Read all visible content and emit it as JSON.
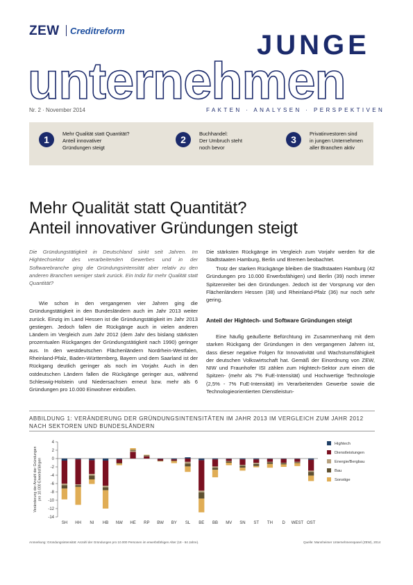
{
  "header": {
    "logo_zew": "ZEW",
    "logo_creditreform": "Creditreform",
    "title_line1": "JUNGE",
    "title_line2": "unternehmen",
    "issue": "Nr. 2 · November 2014",
    "tagline": "FAKTEN · ANALYSEN · PERSPEKTIVEN"
  },
  "teasers": [
    {
      "num": "1",
      "lines": [
        "Mehr Qualität statt Quantität?",
        "Anteil innovativer",
        "Gründungen steigt"
      ]
    },
    {
      "num": "2",
      "lines": [
        "Buchhandel:",
        "Der Umbruch steht",
        "noch bevor"
      ]
    },
    {
      "num": "3",
      "lines": [
        "Privatinvestoren sind",
        "in jungen Unternehmen",
        "aller Branchen aktiv"
      ]
    }
  ],
  "article": {
    "headline_line1": "Mehr Qualität statt Quantität?",
    "headline_line2": "Anteil innovativer Gründungen steigt",
    "lead": "Die Gründungstätigkeit in Deutschland sinkt seit Jahren. Im Hightechsektor des verarbeitenden Gewerbes und in der Softwarebranche ging die Gründungsintensität aber relativ zu den anderen Branchen weniger stark zurück. Ein Indiz für mehr Qualität statt Quantität?",
    "p1": "Wie schon in den vergangenen vier Jahren ging die Gründungstätigkeit in den Bundesländern auch im Jahr 2013 weiter zurück. Einzig im Land Hessen ist die Gründungstätigkeit im Jahr 2013 gestiegen. Jedoch fallen die Rückgänge auch in vielen anderen Ländern im Vergleich zum Jahr 2012 (dem Jahr des bislang stärksten prozentualen Rückganges der Gründungstätigkeit nach 1990) geringer aus. In den westdeutschen Flächenländern Nordrhein-Westfalen, Rheinland-Pfalz, Baden-Württemberg, Bayern und dem Saarland ist der Rückgang deutlich geringer als noch im Vorjahr. Auch in den ostdeutschen Ländern fallen die Rückgänge geringer aus, während Schleswig-Holstein und Niedersachsen erneut bzw. mehr als 6 Gründungen pro 10.000 Einwohner einbüßen.",
    "p2": "Die stärksten Rückgänge im Vergleich zum Vorjahr werden für die Stadtstaaten Hamburg, Berlin und Bremen beobachtet.",
    "p3": "Trotz der starken Rückgänge bleiben die Stadtstaaten Hamburg (42 Gründungen pro 10.000 Erwerbsfähigen) und Berlin (39) noch immer Spitzenreiter bei den Gründungen. Jedoch ist der Vorsprung vor den Flächenländern Hessen (38) und Rheinland-Pfalz (36) nur noch sehr gering.",
    "subhead": "Anteil der Hightech- und Software Gründungen steigt",
    "p4": "Eine häufig geäußerte Befürchtung im Zusammenhang mit dem starken Rückgang der Gründungen in den vergangenen Jahren ist, dass dieser negative Folgen für Innovativität und Wachstumsfähigkeit der deutschen Volkswirtschaft hat. Gemäß der Einordnung von ZEW, NIW und Fraunhofer ISI zählen zum Hightech-Sektor zum einen die Spitzen- (mehr als 7% FuE-Intensität) und Hochwertige Technologie (2,5% - 7% FuE-Intensität) im Verarbeitenden Gewerbe sowie die Technologieorientierten Dienstleistun-"
  },
  "figure": {
    "title": "ABBILDUNG 1: VERÄNDERUNG DER GRÜNDUNGSINTENSITÄTEN IM JAHR 2013 IM VERGLEICH ZUM JAHR 2012 NACH SEKTOREN UND BUNDESLÄNDERN",
    "footnote_left": "Anmerkung: Gründungsintensität: Anzahl der Gründungen pro 10.000 Personen im erwerbsfähigen Alter (18 - 64 Jahre).",
    "footnote_right": "Quelle: Mannheimer Unternehmenspanel (ZEW), 2014"
  },
  "chart_data": {
    "type": "bar",
    "stacked": true,
    "title": "",
    "xlabel": "",
    "ylabel": "Veränderung der Anzahl der Gründungen pro 10.000 Erwerbsfähigen",
    "ylim": [
      -14,
      4
    ],
    "yticks": [
      4,
      2,
      0,
      -2,
      -4,
      -6,
      -8,
      -10,
      -12,
      -14
    ],
    "grid": false,
    "legend": "right",
    "categories": [
      "SH",
      "HH",
      "NI",
      "HB",
      "NW",
      "HE",
      "RP",
      "BW",
      "BY",
      "SL",
      "BE",
      "BB",
      "MV",
      "SN",
      "ST",
      "TH",
      "D",
      "WEST",
      "OST"
    ],
    "colors": [
      "#1f3f66",
      "#7a1020",
      "#b6a07e",
      "#5e5030",
      "#e0ad55"
    ],
    "series": [
      {
        "name": "Hightech",
        "values": [
          -0.5,
          -0.2,
          -0.4,
          -0.5,
          -0.2,
          0.0,
          0.0,
          -0.1,
          -0.2,
          0.3,
          -0.4,
          -0.2,
          -0.1,
          -0.2,
          -0.2,
          -0.1,
          -0.1,
          -0.1,
          -0.3
        ]
      },
      {
        "name": "Dienstleistungen",
        "values": [
          -5.5,
          -6.0,
          -3.3,
          -6.0,
          -0.8,
          1.6,
          0.5,
          -0.4,
          -0.3,
          -0.8,
          -7.3,
          -1.7,
          -0.5,
          -1.3,
          -0.8,
          -0.7,
          -0.9,
          -0.7,
          -2.6
        ]
      },
      {
        "name": "Energie/Bergbau",
        "values": [
          -0.4,
          -0.2,
          -0.4,
          -0.4,
          0.0,
          0.3,
          0.1,
          0.0,
          0.0,
          -0.4,
          -0.4,
          -0.3,
          -0.1,
          -0.2,
          -0.3,
          -0.1,
          -0.1,
          -0.1,
          -0.3
        ]
      },
      {
        "name": "Bau",
        "values": [
          -0.8,
          -0.4,
          -0.9,
          -0.7,
          -0.2,
          0.2,
          0.2,
          -0.1,
          -0.1,
          -0.7,
          -1.5,
          -0.5,
          -0.3,
          -0.5,
          -0.5,
          -0.4,
          -0.3,
          -0.2,
          -0.9
        ]
      },
      {
        "name": "Sonstige",
        "values": [
          -2.6,
          -4.3,
          -1.1,
          -4.4,
          -0.4,
          0.4,
          0.1,
          -0.1,
          -0.5,
          -1.3,
          -3.3,
          -1.8,
          -0.6,
          -0.7,
          -0.3,
          -0.9,
          -0.6,
          -0.7,
          -1.3
        ]
      }
    ]
  }
}
